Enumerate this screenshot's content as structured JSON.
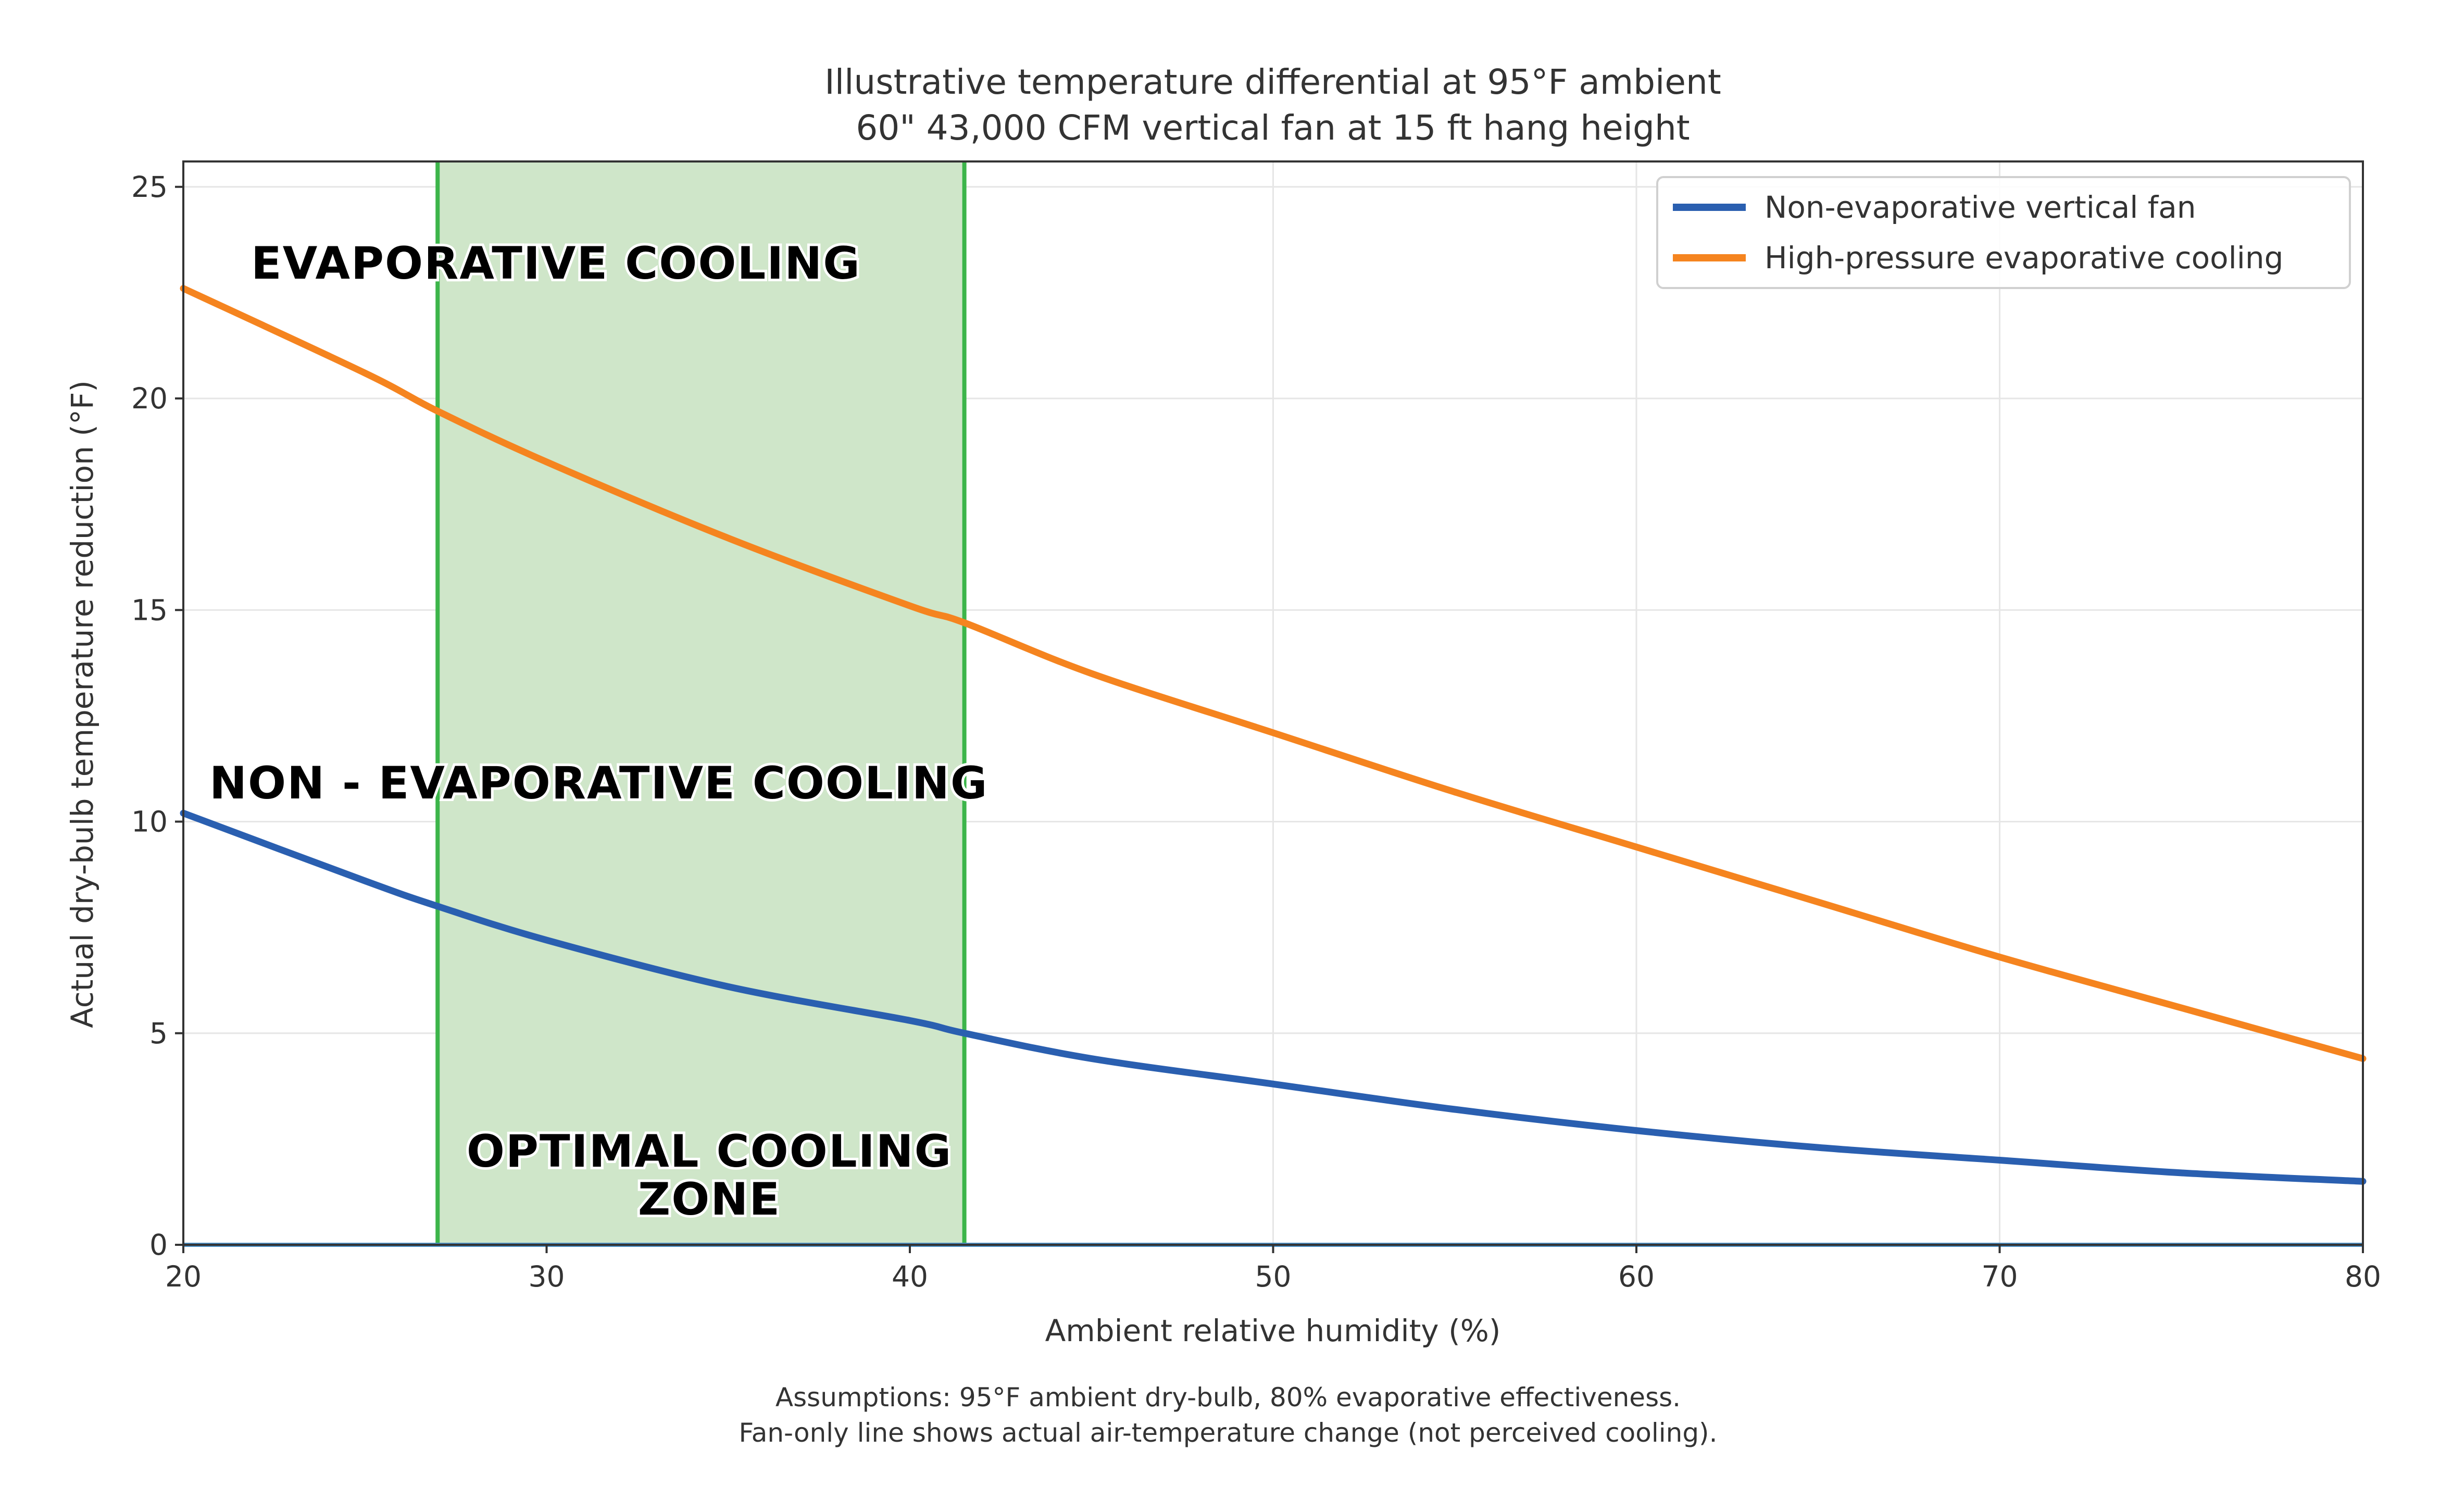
{
  "chart_data": {
    "type": "line",
    "title": "Illustrative temperature differential at 95°F ambient",
    "subtitle": "60\" 43,000 CFM vertical fan at 15 ft hang height",
    "xlabel": "Ambient relative humidity (%)",
    "ylabel": "Actual dry-bulb temperature reduction (°F)",
    "xlim": [
      20,
      80
    ],
    "ylim": [
      0,
      25.6
    ],
    "x_ticks": [
      "20",
      "30",
      "40",
      "50",
      "60",
      "70",
      "80"
    ],
    "y_ticks": [
      "0",
      "5",
      "10",
      "15",
      "20",
      "25"
    ],
    "grid": true,
    "legend_position": "top-right",
    "x": [
      20,
      25,
      27,
      30,
      35,
      40,
      41.5,
      45,
      50,
      55,
      60,
      65,
      70,
      75,
      80
    ],
    "series": [
      {
        "name": "Non-evaporative vertical fan",
        "color": "#2a5fb0",
        "values": [
          10.2,
          8.6,
          8.0,
          7.2,
          6.1,
          5.3,
          5.0,
          4.4,
          3.8,
          3.2,
          2.7,
          2.3,
          2.0,
          1.7,
          1.5
        ]
      },
      {
        "name": "High-pressure evaporative cooling",
        "color": "#f5841f",
        "values": [
          22.6,
          20.6,
          19.7,
          18.5,
          16.7,
          15.1,
          14.7,
          13.5,
          12.1,
          10.7,
          9.4,
          8.1,
          6.8,
          5.6,
          4.4
        ]
      }
    ],
    "baseline": {
      "y": 0,
      "color": "#4c8fc4"
    },
    "shaded_region": {
      "x_start": 27,
      "x_end": 41.5,
      "fill": "#cfe6c9",
      "edge_color": "#3cb54a"
    },
    "annotations": [
      {
        "text": "EVAPORATIVE COOLING"
      },
      {
        "text": "NON - EVAPORATIVE COOLING"
      },
      {
        "text": "OPTIMAL COOLING"
      },
      {
        "text": "ZONE"
      }
    ],
    "notes": [
      "Assumptions: 95°F ambient dry-bulb, 80% evaporative effectiveness.",
      "Fan-only line shows actual air-temperature change (not perceived cooling)."
    ]
  }
}
